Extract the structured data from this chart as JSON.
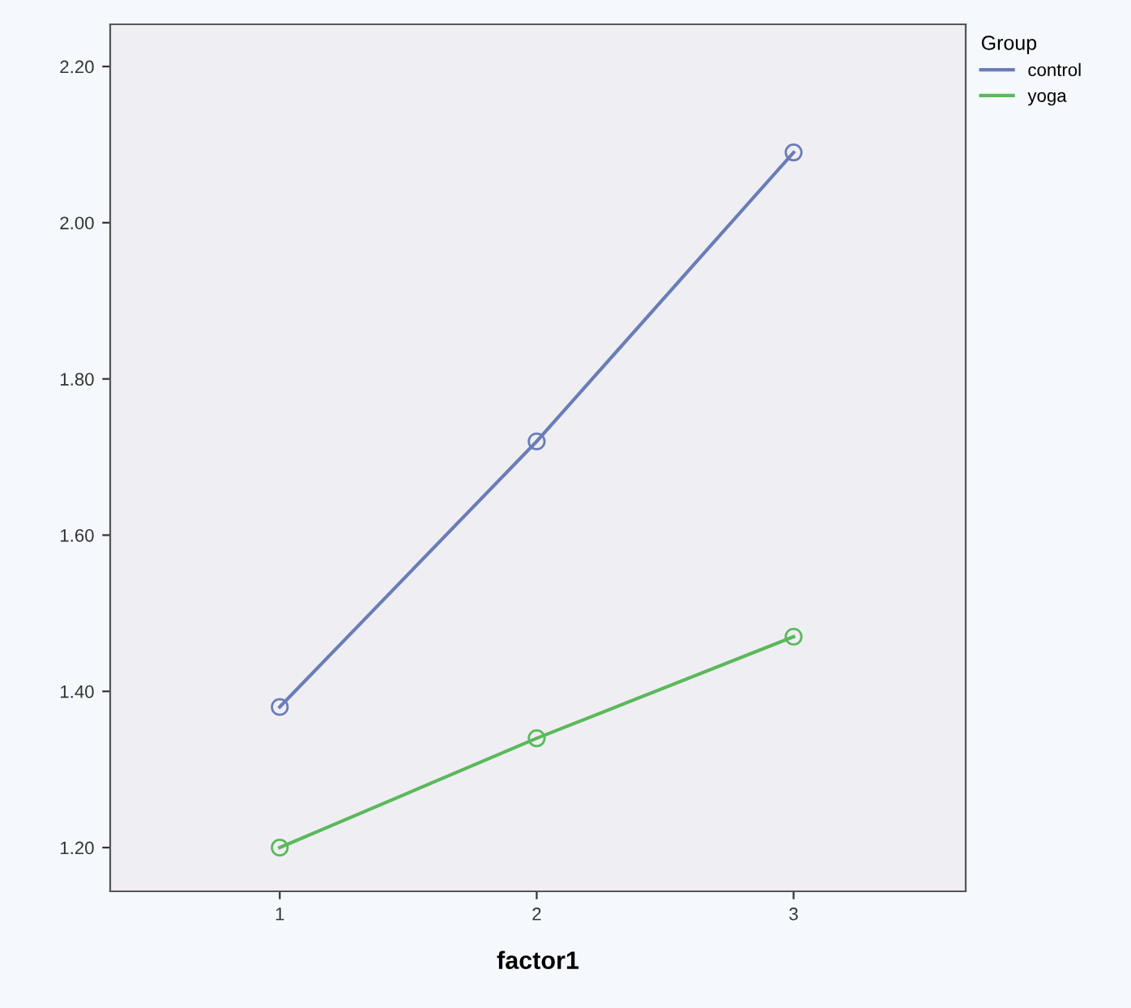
{
  "chart_data": {
    "type": "line",
    "xlabel": "factor1",
    "legend_title": "Group",
    "x": [
      1,
      2,
      3
    ],
    "xlim": [
      0.34,
      3.67
    ],
    "xticks": [
      1,
      2,
      3
    ],
    "ylim": [
      1.144,
      2.254
    ],
    "yticks": [
      {
        "value": 1.2,
        "label": "1.20"
      },
      {
        "value": 1.4,
        "label": "1.40"
      },
      {
        "value": 1.6,
        "label": "1.60"
      },
      {
        "value": 1.8,
        "label": "1.80"
      },
      {
        "value": 2.0,
        "label": "2.00"
      },
      {
        "value": 2.2,
        "label": "2.20"
      }
    ],
    "series": [
      {
        "name": "control",
        "color": "#6a7db8",
        "values": [
          1.38,
          1.72,
          2.09
        ]
      },
      {
        "name": "yoga",
        "color": "#5cb85c",
        "values": [
          1.2,
          1.34,
          1.47
        ]
      }
    ],
    "marker": "circle",
    "line_style": "solid",
    "legend": "top right",
    "grid": false
  }
}
